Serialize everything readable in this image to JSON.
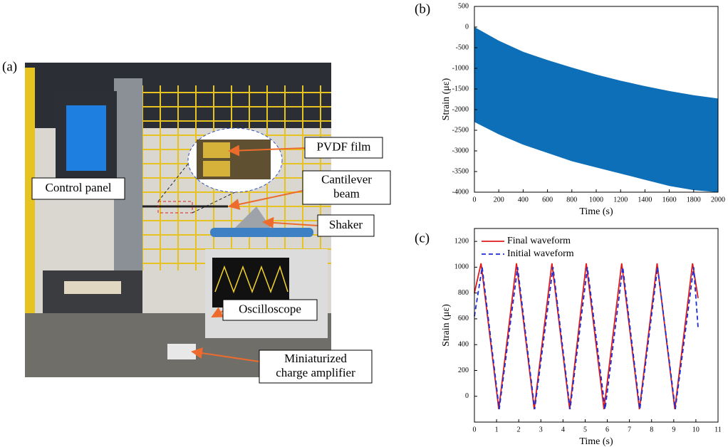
{
  "photo": {
    "panel_label": "(a)",
    "labels": {
      "control_panel": [
        "Control panel"
      ],
      "pvdf_film": [
        "PVDF film"
      ],
      "cantilever_beam": [
        "Cantilever",
        "beam"
      ],
      "shaker": [
        "Shaker"
      ],
      "oscilloscope": [
        "Oscilloscope"
      ],
      "charge_amplifier": [
        "Miniaturized",
        "charge amplifier"
      ]
    }
  },
  "chart_data": [
    {
      "type": "band",
      "panel_label": "(b)",
      "x_label": "Time (s)",
      "y_label": "Strain (με)",
      "color": "#0d6fb8",
      "x": [
        0,
        200,
        400,
        600,
        800,
        1000,
        1200,
        1400,
        1600,
        1800,
        2000
      ],
      "upper": [
        0,
        -330,
        -600,
        -800,
        -980,
        -1150,
        -1300,
        -1430,
        -1550,
        -1650,
        -1730
      ],
      "lower": [
        -2300,
        -2600,
        -2850,
        -3050,
        -3250,
        -3400,
        -3550,
        -3700,
        -3850,
        -3950,
        -4000
      ],
      "xlim": [
        0,
        2000
      ],
      "xticks": [
        0,
        200,
        400,
        600,
        800,
        1000,
        1200,
        1400,
        1600,
        1800,
        2000
      ],
      "ylim": [
        -4000,
        500
      ],
      "yticks": [
        -4000,
        -3500,
        -3000,
        -2500,
        -2000,
        -1500,
        -1000,
        -500,
        0,
        500
      ]
    },
    {
      "type": "line",
      "panel_label": "(c)",
      "x_label": "Time (s)",
      "y_label": "Strain (με)",
      "legend": "upper left",
      "series": [
        {
          "name": "Final waveform",
          "color": "#e01b1b",
          "line_style": "solid",
          "x": [
            0,
            0.3,
            1.1,
            1.9,
            2.7,
            3.5,
            4.3,
            5.05,
            5.85,
            6.65,
            7.45,
            8.25,
            9.05,
            9.85,
            10.1
          ],
          "values": [
            800,
            1030,
            -100,
            1030,
            -100,
            1030,
            -100,
            1030,
            -100,
            1030,
            -100,
            1030,
            -100,
            1030,
            760
          ]
        },
        {
          "name": "Initial waveform",
          "color": "#1a2fd6",
          "line_style": "dashed",
          "x": [
            0,
            0.35,
            1.12,
            1.95,
            2.72,
            3.55,
            4.32,
            5.1,
            5.9,
            6.7,
            7.47,
            8.27,
            9.07,
            9.9,
            10.1
          ],
          "values": [
            620,
            1000,
            -100,
            1000,
            -100,
            1000,
            -100,
            1000,
            -100,
            1000,
            -100,
            1000,
            -100,
            1000,
            530
          ]
        }
      ],
      "xlim": [
        0,
        11
      ],
      "xticks": [
        0,
        1,
        2,
        3,
        4,
        5,
        6,
        7,
        8,
        9,
        10,
        11
      ],
      "ylim": [
        -200,
        1300
      ],
      "yticks": [
        0,
        200,
        400,
        600,
        800,
        1000,
        1200
      ]
    }
  ]
}
